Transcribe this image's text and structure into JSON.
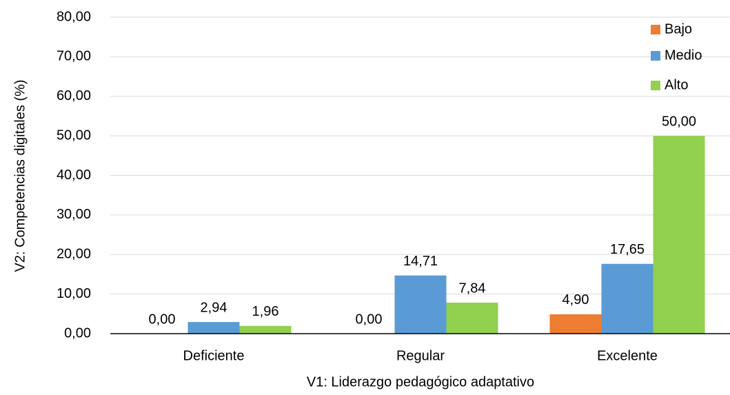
{
  "chart_data": {
    "type": "bar",
    "xlabel": "V1: Liderazgo pedagógico adaptativo",
    "ylabel": "V2: Competencias digitales (%)",
    "categories": [
      "Deficiente",
      "Regular",
      "Excelente"
    ],
    "series": [
      {
        "name": "Bajo",
        "color": "#ed7d31",
        "values": [
          0,
          0,
          4.9
        ],
        "value_labels": [
          "0,00",
          "0,00",
          "4,90"
        ]
      },
      {
        "name": "Medio",
        "color": "#5b9bd5",
        "values": [
          2.94,
          14.71,
          17.65
        ],
        "value_labels": [
          "2,94",
          "14,71",
          "17,65"
        ]
      },
      {
        "name": "Alto",
        "color": "#92d050",
        "values": [
          1.96,
          7.84,
          50
        ],
        "value_labels": [
          "1,96",
          "7,84",
          "50,00"
        ]
      }
    ],
    "ylim": [
      0,
      80
    ],
    "yticks": [
      {
        "value": 0,
        "label": "0,00"
      },
      {
        "value": 10,
        "label": "10,00"
      },
      {
        "value": 20,
        "label": "20,00"
      },
      {
        "value": 30,
        "label": "30,00"
      },
      {
        "value": 40,
        "label": "40,00"
      },
      {
        "value": 50,
        "label": "50,00"
      },
      {
        "value": 60,
        "label": "60,00"
      },
      {
        "value": 70,
        "label": "70,00"
      },
      {
        "value": 80,
        "label": "80,00"
      }
    ],
    "grid": true,
    "legend": "top-right"
  }
}
